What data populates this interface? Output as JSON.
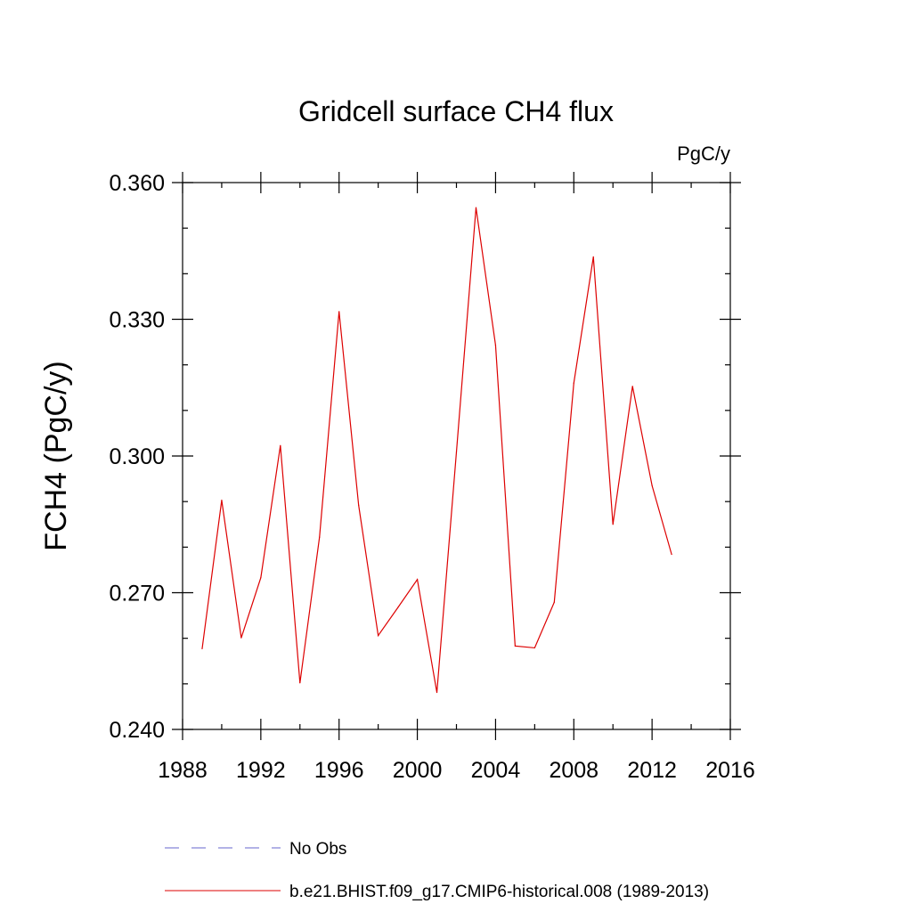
{
  "chart_data": {
    "type": "line",
    "title": "Gridcell surface CH4 flux",
    "units_label": "PgC/y",
    "ylabel": "FCH4  (PgC/y)",
    "xlabel": "",
    "xlim": [
      1988,
      2016
    ],
    "ylim": [
      0.24,
      0.36
    ],
    "x_ticks": [
      1988,
      1992,
      1996,
      2000,
      2004,
      2008,
      2012,
      2016
    ],
    "x_tick_labels": [
      "1988",
      "1992",
      "1996",
      "2000",
      "2004",
      "2008",
      "2012",
      "2016"
    ],
    "x_minor_step": 2,
    "y_ticks": [
      0.24,
      0.27,
      0.3,
      0.33,
      0.36
    ],
    "y_tick_labels": [
      "0.240",
      "0.270",
      "0.300",
      "0.330",
      "0.360"
    ],
    "y_minor_step": 0.01,
    "grid": false,
    "legend_position": "bottom",
    "series": [
      {
        "name": "b.e21.BHIST.f09_g17.CMIP6-historical.008 (1989-2013)",
        "color": "#dd0000",
        "style": "solid",
        "x": [
          1989,
          1990,
          1991,
          1992,
          1993,
          1994,
          1995,
          1996,
          1997,
          1998,
          1999,
          2000,
          2001,
          2002,
          2003,
          2004,
          2005,
          2006,
          2007,
          2008,
          2009,
          2010,
          2011,
          2012,
          2013
        ],
        "values": [
          0.2577,
          0.2903,
          0.2601,
          0.2733,
          0.3023,
          0.2502,
          0.2822,
          0.3317,
          0.2892,
          0.2606,
          0.2667,
          0.2729,
          0.2481,
          0.3009,
          0.3545,
          0.3243,
          0.2583,
          0.2579,
          0.2679,
          0.316,
          0.3437,
          0.285,
          0.3153,
          0.2935,
          0.2784
        ]
      }
    ],
    "legend": [
      {
        "label": "No Obs",
        "color": "#6666cc",
        "style": "dashed"
      },
      {
        "label": "b.e21.BHIST.f09_g17.CMIP6-historical.008 (1989-2013)",
        "color": "#dd0000",
        "style": "solid"
      }
    ]
  }
}
